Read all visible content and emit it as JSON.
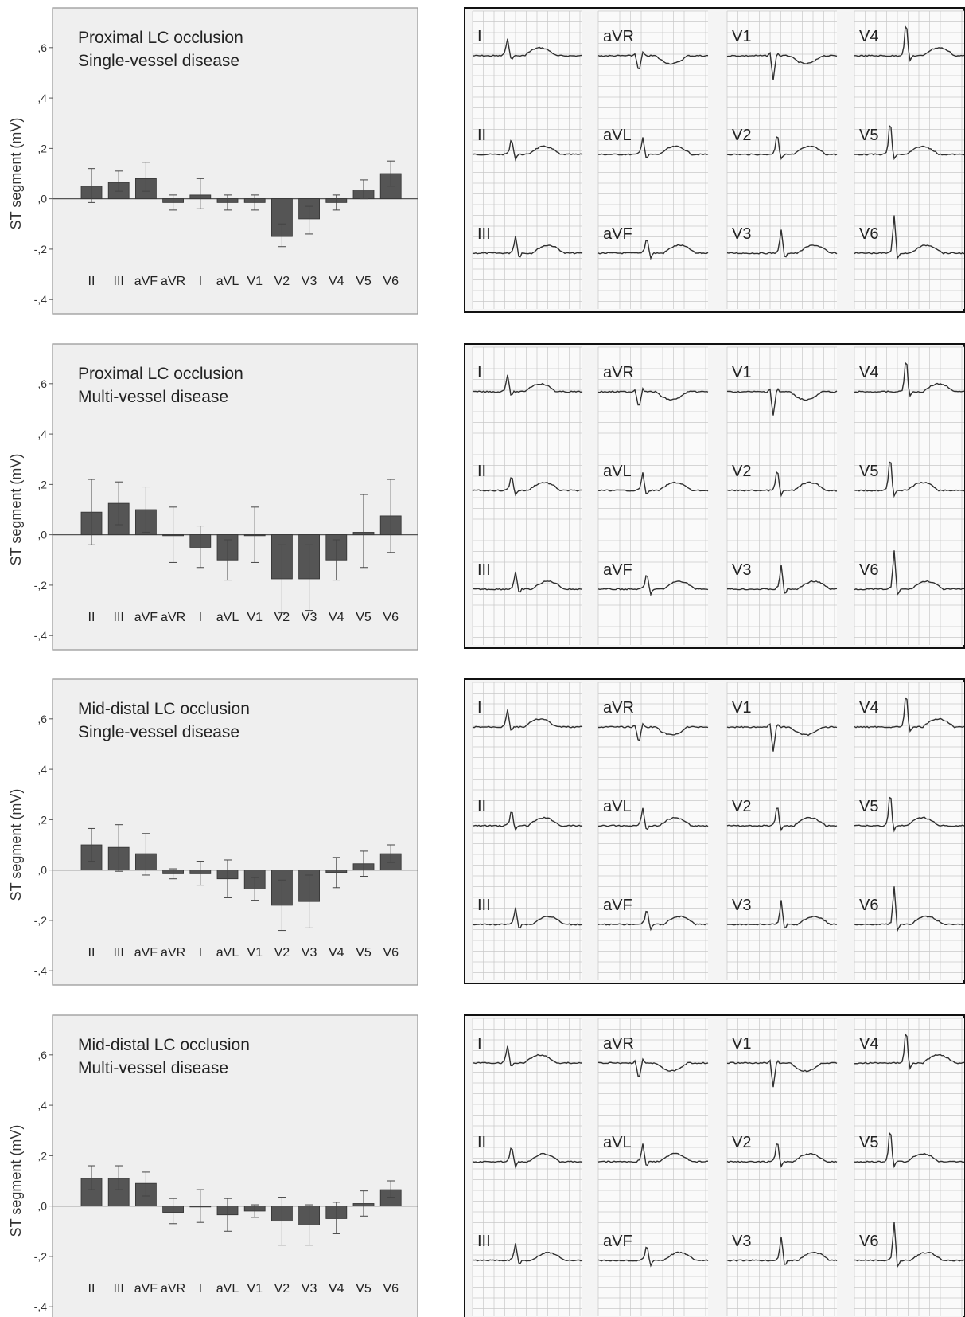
{
  "colors": {
    "bar": "#555555",
    "plot_bg": "#efefef",
    "grid": "#c8c8c8",
    "trace": "#303030",
    "error": "#444444"
  },
  "y_axis_label": "ST segment (mV)",
  "y_tick_labels": [
    ",6",
    ",4",
    ",2",
    ",0",
    "-,2",
    "-,4"
  ],
  "lead_labels": [
    "II",
    "III",
    "aVF",
    "aVR",
    "I",
    "aVL",
    "V1",
    "V2",
    "V3",
    "V4",
    "V5",
    "V6"
  ],
  "chart_data": [
    {
      "type": "bar",
      "title": "Proximal LC occlusion",
      "subtitle": "Single-vessel disease",
      "ylabel": "ST segment (mV)",
      "ylim": [
        -0.45,
        0.65
      ],
      "categories": [
        "II",
        "III",
        "aVF",
        "aVR",
        "I",
        "aVL",
        "V1",
        "V2",
        "V3",
        "V4",
        "V5",
        "V6"
      ],
      "values": [
        0.05,
        0.065,
        0.08,
        -0.015,
        0.015,
        -0.015,
        -0.015,
        -0.15,
        -0.08,
        -0.015,
        0.035,
        0.1
      ],
      "err_low": [
        -0.015,
        0.03,
        0.03,
        -0.045,
        -0.04,
        -0.045,
        -0.045,
        -0.19,
        -0.14,
        -0.045,
        0.0,
        0.05
      ],
      "err_high": [
        0.12,
        0.11,
        0.145,
        0.015,
        0.08,
        0.015,
        0.015,
        -0.1,
        -0.03,
        0.015,
        0.075,
        0.15
      ]
    },
    {
      "type": "bar",
      "title": "Proximal LC occlusion",
      "subtitle": "Multi-vessel disease",
      "ylabel": "ST segment (mV)",
      "ylim": [
        -0.45,
        0.65
      ],
      "categories": [
        "II",
        "III",
        "aVF",
        "aVR",
        "I",
        "aVL",
        "V1",
        "V2",
        "V3",
        "V4",
        "V5",
        "V6"
      ],
      "values": [
        0.09,
        0.125,
        0.1,
        0.0,
        -0.05,
        -0.1,
        0.0,
        -0.175,
        -0.175,
        -0.1,
        0.01,
        0.075
      ],
      "err_low": [
        -0.04,
        0.04,
        0.01,
        -0.11,
        -0.13,
        -0.18,
        -0.11,
        -0.31,
        -0.3,
        -0.18,
        -0.13,
        -0.07
      ],
      "err_high": [
        0.22,
        0.21,
        0.19,
        0.11,
        0.035,
        -0.02,
        0.11,
        -0.04,
        -0.04,
        -0.02,
        0.16,
        0.22
      ]
    },
    {
      "type": "bar",
      "title": "Mid-distal LC occlusion",
      "subtitle": "Single-vessel disease",
      "ylabel": "ST segment (mV)",
      "ylim": [
        -0.45,
        0.65
      ],
      "categories": [
        "II",
        "III",
        "aVF",
        "aVR",
        "I",
        "aVL",
        "V1",
        "V2",
        "V3",
        "V4",
        "V5",
        "V6"
      ],
      "values": [
        0.1,
        0.09,
        0.065,
        -0.015,
        -0.015,
        -0.035,
        -0.075,
        -0.14,
        -0.125,
        -0.01,
        0.025,
        0.065
      ],
      "err_low": [
        0.035,
        -0.005,
        -0.02,
        -0.035,
        -0.06,
        -0.11,
        -0.12,
        -0.24,
        -0.23,
        -0.07,
        -0.025,
        0.03
      ],
      "err_high": [
        0.165,
        0.18,
        0.145,
        0.005,
        0.035,
        0.04,
        -0.03,
        -0.04,
        -0.02,
        0.05,
        0.075,
        0.1
      ]
    },
    {
      "type": "bar",
      "title": "Mid-distal LC occlusion",
      "subtitle": "Multi-vessel disease",
      "ylabel": "ST segment (mV)",
      "ylim": [
        -0.45,
        0.65
      ],
      "categories": [
        "II",
        "III",
        "aVF",
        "aVR",
        "I",
        "aVL",
        "V1",
        "V2",
        "V3",
        "V4",
        "V5",
        "V6"
      ],
      "values": [
        0.11,
        0.11,
        0.09,
        -0.025,
        0.0,
        -0.035,
        -0.02,
        -0.06,
        -0.075,
        -0.05,
        0.01,
        0.065
      ],
      "err_low": [
        0.065,
        0.065,
        0.04,
        -0.07,
        -0.065,
        -0.1,
        -0.045,
        -0.155,
        -0.155,
        -0.11,
        -0.04,
        0.035
      ],
      "err_high": [
        0.16,
        0.16,
        0.135,
        0.03,
        0.065,
        0.03,
        0.005,
        0.035,
        0.005,
        0.015,
        0.06,
        0.1
      ]
    }
  ],
  "ecg_panels": [
    {
      "columns": [
        [
          "I",
          "II",
          "III"
        ],
        [
          "aVR",
          "aVL",
          "aVF"
        ],
        [
          "V1",
          "V2",
          "V3"
        ],
        [
          "V4",
          "V5",
          "V6"
        ]
      ]
    },
    {
      "columns": [
        [
          "I",
          "II",
          "III"
        ],
        [
          "aVR",
          "aVL",
          "aVF"
        ],
        [
          "V1",
          "V2",
          "V3"
        ],
        [
          "V4",
          "V5",
          "V6"
        ]
      ]
    },
    {
      "columns": [
        [
          "I",
          "II",
          "III"
        ],
        [
          "aVR",
          "aVL",
          "aVF"
        ],
        [
          "V1",
          "V2",
          "V3"
        ],
        [
          "V4",
          "V5",
          "V6"
        ]
      ]
    },
    {
      "columns": [
        [
          "I",
          "II",
          "III"
        ],
        [
          "aVR",
          "aVL",
          "aVF"
        ],
        [
          "V1",
          "V2",
          "V3"
        ],
        [
          "V4",
          "V5",
          "V6"
        ]
      ]
    }
  ]
}
